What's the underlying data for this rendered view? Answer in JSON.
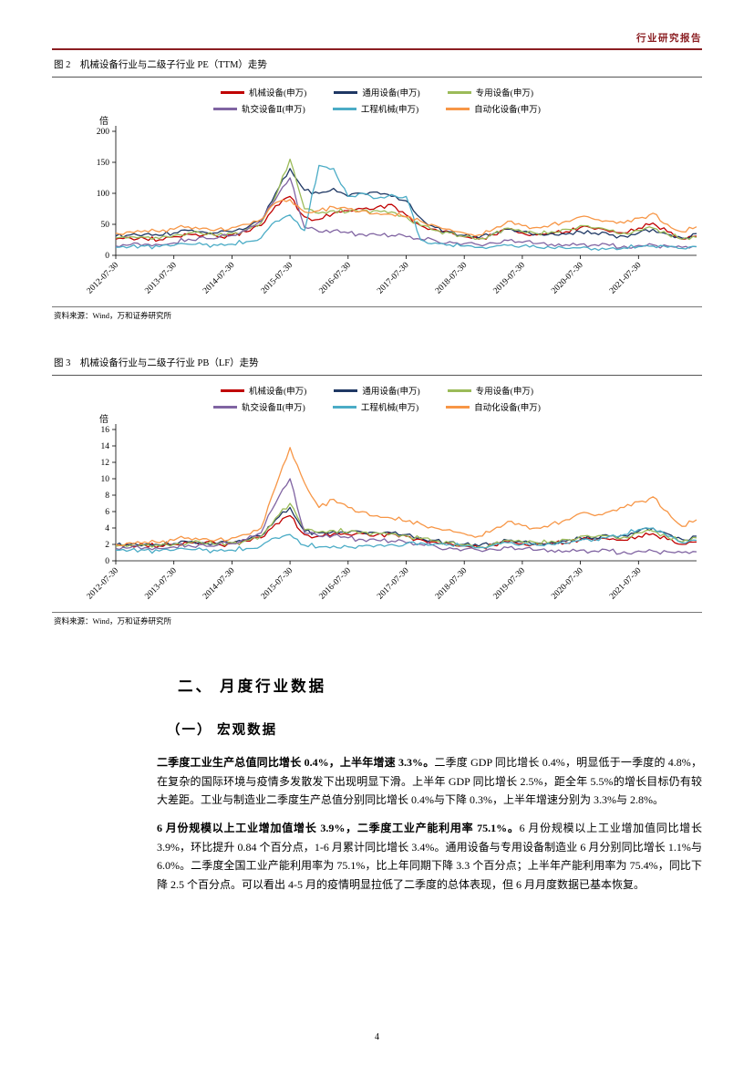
{
  "page": {
    "header_right": "行业研究报告",
    "page_number": "4"
  },
  "figure2": {
    "caption": "图 2　机械设备行业与二级子行业 PE（TTM）走势",
    "source": "资料来源：Wind，万和证券研究所"
  },
  "figure3": {
    "caption": "图 3　机械设备行业与二级子行业 PB（LF）走势",
    "source": "资料来源：Wind，万和证券研究所"
  },
  "section": {
    "heading": "二、 月度行业数据",
    "subheading": "（一） 宏观数据"
  },
  "paragraphs": [
    {
      "bold": "二季度工业生产总值同比增长 0.4%，上半年增速 3.3%。",
      "text": "二季度 GDP 同比增长 0.4%，明显低于一季度的 4.8%，在复杂的国际环境与疫情多发散发下出现明显下滑。上半年 GDP 同比增长 2.5%，距全年 5.5%的增长目标仍有较大差距。工业与制造业二季度生产总值分别同比增长 0.4%与下降 0.3%，上半年增速分别为 3.3%与 2.8%。"
    },
    {
      "bold": "6 月份规模以上工业增加值增长 3.9%，二季度工业产能利用率 75.1%。",
      "text": "6 月份规模以上工业增加值同比增长 3.9%，环比提升 0.84 个百分点，1-6 月累计同比增长 3.4%。通用设备与专用设备制造业 6 月分别同比增长 1.1%与 6.0%。二季度全国工业产能利用率为 75.1%，比上年同期下降 3.3 个百分点；上半年产能利用率为 75.4%，同比下降 2.5 个百分点。可以看出 4-5 月的疫情明显拉低了二季度的总体表现，但 6 月月度数据已基本恢复。"
    }
  ],
  "chart_data": [
    {
      "type": "line",
      "title": "机械设备行业与二级子行业 PE（TTM）走势",
      "ylabel": "倍",
      "ylim": [
        0,
        200
      ],
      "yticks": [
        0,
        50,
        100,
        150,
        200
      ],
      "grid": false,
      "legend_position": "top",
      "x_tick_labels": [
        "2012-07-30",
        "2013-07-30",
        "2014-07-30",
        "2015-07-30",
        "2016-07-30",
        "2017-07-30",
        "2018-07-30",
        "2019-07-30",
        "2020-07-30",
        "2021-07-30"
      ],
      "x_tick_indices": [
        0,
        4,
        8,
        12,
        16,
        20,
        24,
        28,
        32,
        36
      ],
      "x_note": "quarterly samples from 2012-07 to 2022-07",
      "series": [
        {
          "name": "机械设备(申万)",
          "color": "#C00000",
          "values": [
            26,
            28,
            27,
            25,
            30,
            34,
            32,
            30,
            33,
            38,
            48,
            80,
            95,
            62,
            58,
            68,
            72,
            75,
            78,
            82,
            65,
            48,
            42,
            38,
            30,
            26,
            33,
            42,
            36,
            33,
            35,
            38,
            45,
            42,
            38,
            36,
            44,
            52,
            38,
            26,
            31
          ]
        },
        {
          "name": "通用设备(申万)",
          "color": "#1F3864",
          "values": [
            31,
            33,
            34,
            32,
            36,
            40,
            38,
            36,
            38,
            44,
            55,
            100,
            140,
            105,
            100,
            108,
            95,
            100,
            102,
            95,
            88,
            60,
            45,
            38,
            32,
            28,
            35,
            42,
            38,
            35,
            36,
            34,
            38,
            36,
            33,
            31,
            36,
            42,
            34,
            28,
            35
          ]
        },
        {
          "name": "专用设备(申万)",
          "color": "#9BBB59",
          "values": [
            28,
            30,
            29,
            27,
            32,
            36,
            34,
            32,
            35,
            42,
            52,
            95,
            155,
            75,
            68,
            72,
            70,
            73,
            72,
            70,
            62,
            48,
            40,
            36,
            30,
            27,
            34,
            44,
            38,
            35,
            38,
            42,
            48,
            44,
            40,
            36,
            40,
            44,
            34,
            26,
            29
          ]
        },
        {
          "name": "轨交设备Ⅱ(申万)",
          "color": "#8064A2",
          "values": [
            15,
            17,
            18,
            17,
            20,
            26,
            30,
            28,
            32,
            40,
            55,
            90,
            125,
            45,
            38,
            40,
            36,
            34,
            33,
            32,
            30,
            26,
            24,
            22,
            19,
            17,
            20,
            24,
            21,
            19,
            18,
            17,
            18,
            17,
            16,
            15,
            16,
            17,
            15,
            13,
            14
          ]
        },
        {
          "name": "工程机械(申万)",
          "color": "#4BACC6",
          "values": [
            13,
            14,
            15,
            14,
            16,
            18,
            17,
            16,
            18,
            22,
            28,
            55,
            65,
            40,
            145,
            140,
            95,
            100,
            92,
            98,
            95,
            25,
            20,
            17,
            15,
            13,
            14,
            16,
            15,
            13,
            12,
            11,
            12,
            11,
            11,
            12,
            14,
            15,
            13,
            11,
            14
          ]
        },
        {
          "name": "自动化设备(申万)",
          "color": "#F79646",
          "values": [
            36,
            38,
            40,
            38,
            42,
            46,
            44,
            42,
            45,
            50,
            58,
            85,
            90,
            70,
            72,
            78,
            75,
            72,
            68,
            66,
            62,
            55,
            48,
            42,
            36,
            33,
            42,
            55,
            48,
            45,
            50,
            55,
            62,
            58,
            55,
            52,
            60,
            68,
            50,
            38,
            46
          ]
        }
      ]
    },
    {
      "type": "line",
      "title": "机械设备行业与二级子行业 PB（LF）走势",
      "ylabel": "倍",
      "ylim": [
        0,
        16
      ],
      "yticks": [
        0,
        2,
        4,
        6,
        8,
        10,
        12,
        14,
        16
      ],
      "grid": false,
      "legend_position": "top",
      "x_tick_labels": [
        "2012-07-30",
        "2013-07-30",
        "2014-07-30",
        "2015-07-30",
        "2016-07-30",
        "2017-07-30",
        "2018-07-30",
        "2019-07-30",
        "2020-07-30",
        "2021-07-30"
      ],
      "x_tick_indices": [
        0,
        4,
        8,
        12,
        16,
        20,
        24,
        28,
        32,
        36
      ],
      "x_note": "quarterly samples from 2012-07 to 2022-07",
      "series": [
        {
          "name": "机械设备(申万)",
          "color": "#C00000",
          "values": [
            1.8,
            1.9,
            1.9,
            1.8,
            2.0,
            2.2,
            2.1,
            2.0,
            2.1,
            2.4,
            2.8,
            4.5,
            5.5,
            3.2,
            3.0,
            3.3,
            3.2,
            3.3,
            3.2,
            3.3,
            3.0,
            2.6,
            2.3,
            2.1,
            1.8,
            1.6,
            1.9,
            2.3,
            2.1,
            2.0,
            2.1,
            2.2,
            2.6,
            2.5,
            2.6,
            2.5,
            3.0,
            3.3,
            2.6,
            2.0,
            2.3
          ]
        },
        {
          "name": "通用设备(申万)",
          "color": "#1F3864",
          "values": [
            1.9,
            2.0,
            2.0,
            1.9,
            2.1,
            2.3,
            2.2,
            2.1,
            2.2,
            2.5,
            3.0,
            5.0,
            6.5,
            3.6,
            3.4,
            3.6,
            3.4,
            3.5,
            3.4,
            3.4,
            3.2,
            2.8,
            2.5,
            2.3,
            2.0,
            1.8,
            2.1,
            2.5,
            2.3,
            2.2,
            2.3,
            2.4,
            2.8,
            2.8,
            3.0,
            3.1,
            3.6,
            4.0,
            3.3,
            2.6,
            3.0
          ]
        },
        {
          "name": "专用设备(申万)",
          "color": "#9BBB59",
          "values": [
            1.8,
            1.9,
            1.9,
            1.8,
            2.0,
            2.2,
            2.1,
            2.0,
            2.2,
            2.5,
            3.0,
            5.2,
            7.0,
            3.8,
            3.5,
            3.7,
            3.5,
            3.5,
            3.4,
            3.3,
            3.1,
            2.7,
            2.4,
            2.2,
            1.9,
            1.7,
            2.0,
            2.5,
            2.3,
            2.2,
            2.4,
            2.6,
            3.0,
            2.9,
            3.0,
            2.9,
            3.4,
            3.6,
            2.9,
            2.3,
            2.8
          ]
        },
        {
          "name": "轨交设备Ⅱ(申万)",
          "color": "#8064A2",
          "values": [
            1.5,
            1.6,
            1.6,
            1.5,
            1.7,
            1.9,
            2.0,
            1.9,
            2.1,
            2.6,
            3.4,
            7.0,
            10.0,
            3.4,
            3.0,
            3.1,
            2.8,
            2.6,
            2.5,
            2.4,
            2.2,
            2.0,
            1.8,
            1.6,
            1.4,
            1.3,
            1.4,
            1.6,
            1.4,
            1.3,
            1.3,
            1.2,
            1.3,
            1.2,
            1.2,
            1.1,
            1.2,
            1.2,
            1.1,
            1.0,
            1.1
          ]
        },
        {
          "name": "工程机械(申万)",
          "color": "#4BACC6",
          "values": [
            1.3,
            1.3,
            1.3,
            1.2,
            1.3,
            1.4,
            1.3,
            1.2,
            1.3,
            1.5,
            1.8,
            2.8,
            3.2,
            1.9,
            1.7,
            1.8,
            1.7,
            1.8,
            1.9,
            2.0,
            2.1,
            2.2,
            2.1,
            2.0,
            1.8,
            1.6,
            1.9,
            2.2,
            2.0,
            1.9,
            2.0,
            2.1,
            2.5,
            2.6,
            3.0,
            3.2,
            3.8,
            4.0,
            3.0,
            2.2,
            2.5
          ]
        },
        {
          "name": "自动化设备(申万)",
          "color": "#F79646",
          "values": [
            2.0,
            2.2,
            2.3,
            2.2,
            2.5,
            2.8,
            2.7,
            2.6,
            2.8,
            3.2,
            4.0,
            9.0,
            13.8,
            9.5,
            6.5,
            7.5,
            6.5,
            6.0,
            5.5,
            5.2,
            4.8,
            4.5,
            4.0,
            3.8,
            3.3,
            3.0,
            3.8,
            4.8,
            4.3,
            4.0,
            4.5,
            5.0,
            5.8,
            5.5,
            6.0,
            6.5,
            7.2,
            7.8,
            6.0,
            4.2,
            5.0
          ]
        }
      ]
    }
  ]
}
